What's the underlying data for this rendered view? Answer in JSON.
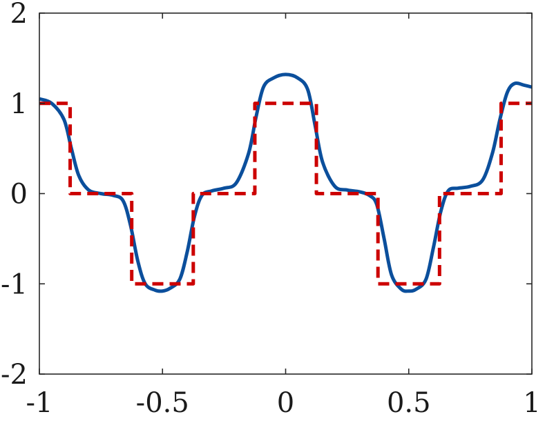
{
  "chart_data": {
    "type": "line",
    "title": "",
    "xlabel": "",
    "ylabel": "",
    "xlim": [
      -1,
      1
    ],
    "ylim": [
      -2,
      2
    ],
    "grid": false,
    "x_ticks": [
      -1,
      -0.5,
      0,
      0.5,
      1
    ],
    "x_tick_labels": [
      "-1",
      "-0.5",
      "0",
      "0.5",
      "1"
    ],
    "y_ticks": [
      -2,
      -1,
      0,
      1,
      2
    ],
    "y_tick_labels": [
      "-2",
      "-1",
      "0",
      "1",
      "2"
    ],
    "series": [
      {
        "color": "#0b4f9c",
        "style": "solid",
        "x": [
          -1.0,
          -0.95,
          -0.9,
          -0.87,
          -0.84,
          -0.8,
          -0.75,
          -0.7,
          -0.66,
          -0.63,
          -0.6,
          -0.57,
          -0.53,
          -0.5,
          -0.47,
          -0.43,
          -0.4,
          -0.37,
          -0.34,
          -0.3,
          -0.25,
          -0.2,
          -0.15,
          -0.12,
          -0.09,
          -0.05,
          0.0,
          0.05,
          0.09,
          0.12,
          0.15,
          0.2,
          0.25,
          0.3,
          0.34,
          0.37,
          0.4,
          0.43,
          0.47,
          0.5,
          0.53,
          0.57,
          0.6,
          0.63,
          0.66,
          0.7,
          0.75,
          0.8,
          0.84,
          0.87,
          0.9,
          0.93,
          0.97,
          1.0
        ],
        "y": [
          1.05,
          1.0,
          0.82,
          0.5,
          0.2,
          0.04,
          0.0,
          -0.02,
          -0.08,
          -0.35,
          -0.75,
          -1.0,
          -1.07,
          -1.08,
          -1.05,
          -0.95,
          -0.65,
          -0.25,
          -0.02,
          0.03,
          0.06,
          0.12,
          0.45,
          0.85,
          1.18,
          1.28,
          1.32,
          1.28,
          1.15,
          0.75,
          0.35,
          0.08,
          0.04,
          0.02,
          -0.02,
          -0.12,
          -0.5,
          -0.9,
          -1.06,
          -1.08,
          -1.06,
          -0.95,
          -0.6,
          -0.2,
          0.03,
          0.06,
          0.08,
          0.15,
          0.45,
          0.82,
          1.12,
          1.22,
          1.2,
          1.18
        ]
      },
      {
        "color": "#cc0000",
        "style": "dashed",
        "x": [
          -1.0,
          -0.875,
          -0.875,
          -0.625,
          -0.625,
          -0.375,
          -0.375,
          -0.125,
          -0.125,
          0.125,
          0.125,
          0.375,
          0.375,
          0.625,
          0.625,
          0.875,
          0.875,
          1.0
        ],
        "y": [
          1,
          1,
          0,
          0,
          -1,
          -1,
          0,
          0,
          1,
          1,
          0,
          0,
          -1,
          -1,
          0,
          0,
          1,
          1
        ]
      }
    ]
  }
}
